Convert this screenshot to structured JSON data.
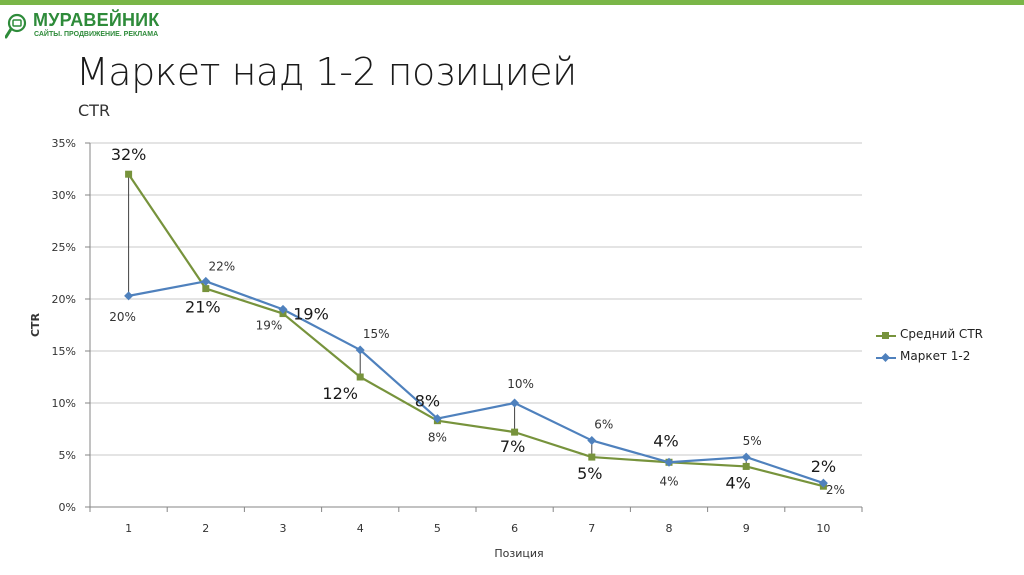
{
  "logo": {
    "name": "МУРАВЕЙНИК",
    "tagline": "САЙТЫ. ПРОДВИЖЕНИЕ. РЕКЛАМА"
  },
  "title": "Маркет над 1-2 позицией",
  "subtitle": "CTR",
  "colors": {
    "accent_bar": "#7ab648",
    "series_green": "#77933c",
    "series_blue": "#4f81bd",
    "grid": "#bfbfbf",
    "drop": "#404040"
  },
  "chart_data": {
    "type": "line",
    "xlabel": "Позиция",
    "ylabel": "CTR",
    "x": [
      1,
      2,
      3,
      4,
      5,
      6,
      7,
      8,
      9,
      10
    ],
    "x_tick_labels": [
      "1",
      "2",
      "3",
      "4",
      "5",
      "6",
      "7",
      "8",
      "9",
      "10"
    ],
    "ylim": [
      0,
      35
    ],
    "y_ticks": [
      0,
      5,
      10,
      15,
      20,
      25,
      30,
      35
    ],
    "y_tick_labels": [
      "0%",
      "5%",
      "10%",
      "15%",
      "20%",
      "25%",
      "30%",
      "35%"
    ],
    "grid": true,
    "legend_position": "right",
    "drop_lines": true,
    "series": [
      {
        "name": "Средний CTR",
        "color": "#77933c",
        "marker": "square",
        "values": [
          32,
          21,
          18.6,
          12.5,
          8.3,
          7.2,
          4.8,
          4.3,
          3.9,
          2.0
        ],
        "labels": [
          "32%",
          "21%",
          "19%",
          "12%",
          "8%",
          "7%",
          "5%",
          "4%",
          "4%",
          "2%"
        ]
      },
      {
        "name": "Маркет 1-2",
        "color": "#4f81bd",
        "marker": "diamond",
        "values": [
          20.3,
          21.7,
          19.0,
          15.1,
          8.5,
          10.0,
          6.4,
          4.3,
          4.8,
          2.3
        ],
        "labels": [
          "20%",
          "22%",
          "19%",
          "15%",
          "8%",
          "10%",
          "6%",
          "4%",
          "5%",
          "2%"
        ]
      }
    ]
  }
}
